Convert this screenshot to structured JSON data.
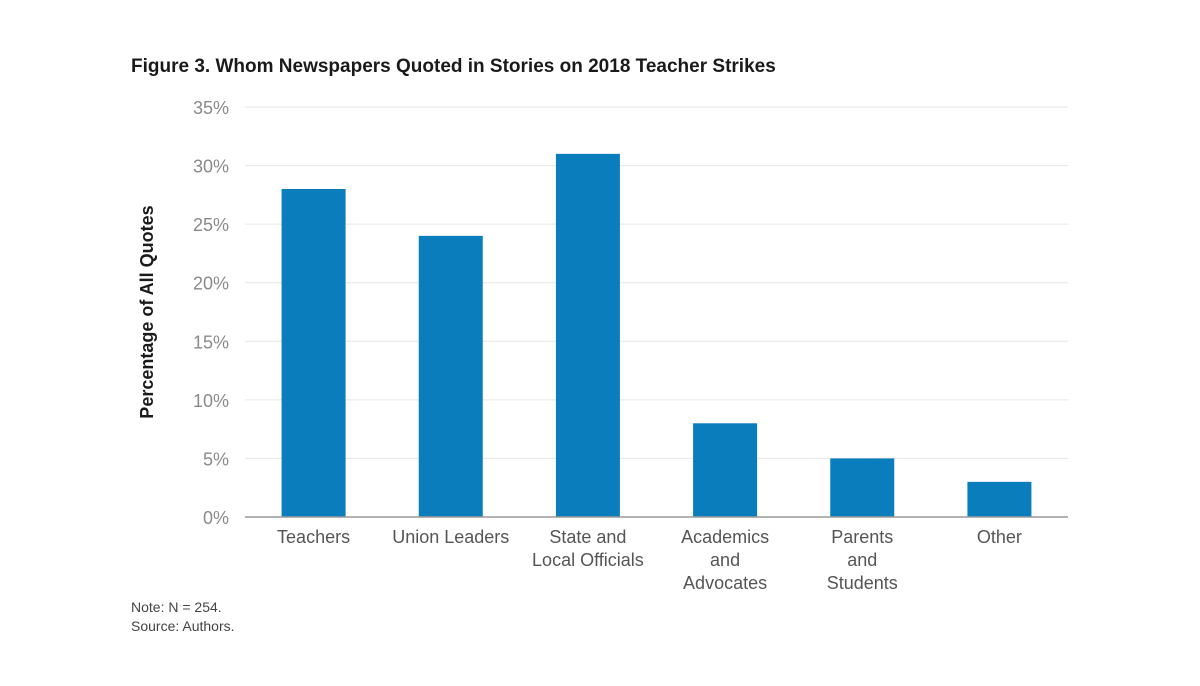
{
  "figure": {
    "title": "Figure 3. Whom Newspapers Quoted in Stories on 2018 Teacher Strikes",
    "note": "Note: N = 254.",
    "source": "Source: Authors."
  },
  "colors": {
    "bar": "#0a7dbd",
    "grid": "#e6e6e6",
    "axis": "#9a9a9a"
  },
  "chart_data": {
    "type": "bar",
    "title": "Figure 3. Whom Newspapers Quoted in Stories on 2018 Teacher Strikes",
    "xlabel": "",
    "ylabel": "Percentage of All Quotes",
    "ylim": [
      0,
      35
    ],
    "yticks": [
      0,
      5,
      10,
      15,
      20,
      25,
      30,
      35
    ],
    "ytick_labels": [
      "0%",
      "5%",
      "10%",
      "15%",
      "20%",
      "25%",
      "30%",
      "35%"
    ],
    "grid": true,
    "categories": [
      [
        "Teachers"
      ],
      [
        "Union Leaders"
      ],
      [
        "State and",
        "Local Officials"
      ],
      [
        "Academics",
        "and",
        "Advocates"
      ],
      [
        "Parents",
        "and",
        "Students"
      ],
      [
        "Other"
      ]
    ],
    "values": [
      28,
      24,
      31,
      8,
      5,
      3
    ]
  }
}
